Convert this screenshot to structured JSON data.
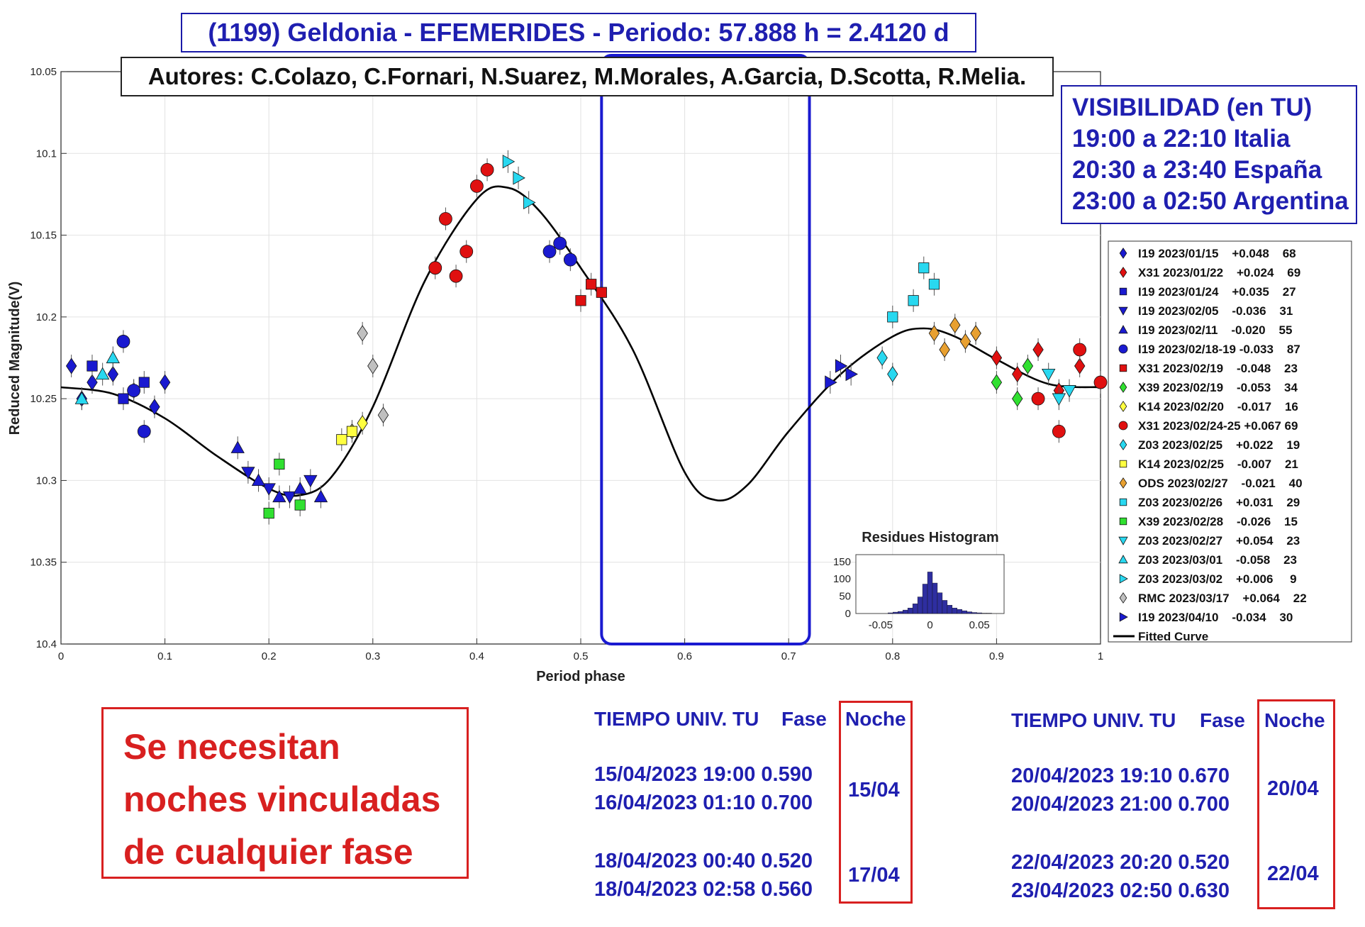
{
  "title": "(1199) Geldonia - EFEMERIDES - Periodo: 57.888 h = 2.4120 d",
  "authors": "Autores: C.Colazo, C.Fornari, N.Suarez, M.Morales, A.Garcia, D.Scotta, R.Melia.",
  "visibility": {
    "heading": "VISIBILIDAD (en TU)",
    "lines": [
      "19:00 a 22:10 Italia",
      "20:30 a 23:40 España",
      "23:00 a 02:50 Argentina"
    ]
  },
  "note_lines": [
    "Se necesitan",
    "noches vinculadas",
    "de cualquier fase"
  ],
  "tables": [
    {
      "headers": [
        "TIEMPO UNIV. TU",
        "Fase",
        "Noche"
      ],
      "groups": [
        {
          "rows": [
            "15/04/2023  19:00 0.590",
            "16/04/2023  01:10 0.700"
          ],
          "noche": "15/04"
        },
        {
          "rows": [
            "18/04/2023  00:40 0.520",
            "18/04/2023  02:58 0.560"
          ],
          "noche": "17/04"
        }
      ]
    },
    {
      "headers": [
        "TIEMPO UNIV. TU",
        "Fase",
        "Noche"
      ],
      "groups": [
        {
          "rows": [
            "20/04/2023  19:10 0.670",
            "20/04/2023  21:00 0.700"
          ],
          "noche": "20/04"
        },
        {
          "rows": [
            "22/04/2023  20:20 0.520",
            "23/04/2023  02:50 0.630"
          ],
          "noche": "22/04"
        }
      ]
    }
  ],
  "colors": {
    "blue": "#1a1ad0",
    "red": "#e01010",
    "cyan": "#28d8f0",
    "green": "#30e030",
    "yellow": "#ffff40",
    "orange": "#e8a030",
    "gray": "#c0c0c0",
    "curve": "#000000",
    "highlight": "#1a1ad0"
  },
  "chart_data": {
    "type": "scatter",
    "xlabel": "Period phase",
    "ylabel": "Reduced Magnitude(V)",
    "xlim": [
      0,
      1
    ],
    "ylim": [
      10.4,
      10.05
    ],
    "y_reversed": true,
    "xticks": [
      "0",
      "0.1",
      "0.2",
      "0.3",
      "0.4",
      "0.5",
      "0.6",
      "0.7",
      "0.8",
      "0.9",
      "1"
    ],
    "yticks": [
      "10.05",
      "10.1",
      "10.15",
      "10.2",
      "10.25",
      "10.3",
      "10.35",
      "10.4"
    ],
    "grid": true,
    "legend_position": "right",
    "highlight_region": {
      "x": [
        0.52,
        0.72
      ],
      "y": [
        10.04,
        10.4
      ]
    },
    "fitted_curve": {
      "name": "Fitted Curve",
      "points": [
        [
          0.0,
          10.243
        ],
        [
          0.05,
          10.247
        ],
        [
          0.1,
          10.262
        ],
        [
          0.15,
          10.285
        ],
        [
          0.2,
          10.305
        ],
        [
          0.23,
          10.309
        ],
        [
          0.26,
          10.298
        ],
        [
          0.3,
          10.255
        ],
        [
          0.35,
          10.178
        ],
        [
          0.4,
          10.128
        ],
        [
          0.43,
          10.121
        ],
        [
          0.46,
          10.135
        ],
        [
          0.5,
          10.17
        ],
        [
          0.55,
          10.22
        ],
        [
          0.6,
          10.295
        ],
        [
          0.63,
          10.312
        ],
        [
          0.66,
          10.303
        ],
        [
          0.7,
          10.27
        ],
        [
          0.75,
          10.235
        ],
        [
          0.8,
          10.212
        ],
        [
          0.83,
          10.207
        ],
        [
          0.86,
          10.212
        ],
        [
          0.9,
          10.226
        ],
        [
          0.95,
          10.241
        ],
        [
          1.0,
          10.243
        ]
      ]
    },
    "series": [
      {
        "name": "I19 2023/01/15    +0.048    68",
        "marker": "diamond",
        "color": "#1a1ad0",
        "points": [
          [
            0.01,
            10.23
          ],
          [
            0.02,
            10.25
          ],
          [
            0.03,
            10.24
          ],
          [
            0.05,
            10.235
          ],
          [
            0.07,
            10.245
          ],
          [
            0.09,
            10.255
          ],
          [
            0.1,
            10.24
          ]
        ]
      },
      {
        "name": "X31 2023/01/22    +0.024    69",
        "marker": "diamond",
        "color": "#e01010",
        "points": [
          [
            0.9,
            10.225
          ],
          [
            0.92,
            10.235
          ],
          [
            0.94,
            10.22
          ],
          [
            0.96,
            10.245
          ],
          [
            0.98,
            10.23
          ]
        ]
      },
      {
        "name": "I19 2023/01/24    +0.035    27",
        "marker": "square",
        "color": "#1a1ad0",
        "points": [
          [
            0.03,
            10.23
          ],
          [
            0.06,
            10.25
          ],
          [
            0.08,
            10.24
          ]
        ]
      },
      {
        "name": "I19 2023/02/05    -0.036    31",
        "marker": "triangle-down",
        "color": "#1a1ad0",
        "points": [
          [
            0.18,
            10.295
          ],
          [
            0.2,
            10.305
          ],
          [
            0.22,
            10.31
          ],
          [
            0.24,
            10.3
          ]
        ]
      },
      {
        "name": "I19 2023/02/11    -0.020    55",
        "marker": "triangle-up",
        "color": "#1a1ad0",
        "points": [
          [
            0.17,
            10.28
          ],
          [
            0.19,
            10.3
          ],
          [
            0.21,
            10.31
          ],
          [
            0.23,
            10.305
          ],
          [
            0.25,
            10.31
          ]
        ]
      },
      {
        "name": "I19 2023/02/18-19 -0.033    87",
        "marker": "circle",
        "color": "#1a1ad0",
        "points": [
          [
            0.06,
            10.215
          ],
          [
            0.07,
            10.245
          ],
          [
            0.08,
            10.27
          ],
          [
            0.47,
            10.16
          ],
          [
            0.48,
            10.155
          ],
          [
            0.49,
            10.165
          ]
        ]
      },
      {
        "name": "X31 2023/02/19    -0.048    23",
        "marker": "square",
        "color": "#e01010",
        "points": [
          [
            0.5,
            10.19
          ],
          [
            0.51,
            10.18
          ],
          [
            0.52,
            10.185
          ]
        ]
      },
      {
        "name": "X39 2023/02/19    -0.053    34",
        "marker": "diamond",
        "color": "#30e030",
        "points": [
          [
            0.88,
            10.21
          ],
          [
            0.9,
            10.24
          ],
          [
            0.92,
            10.25
          ],
          [
            0.93,
            10.23
          ]
        ]
      },
      {
        "name": "K14 2023/02/20    -0.017    16",
        "marker": "diamond",
        "color": "#ffff40",
        "points": [
          [
            0.28,
            10.27
          ],
          [
            0.29,
            10.265
          ]
        ]
      },
      {
        "name": "X31 2023/02/24-25 +0.067 69",
        "marker": "circle",
        "color": "#e01010",
        "points": [
          [
            0.36,
            10.17
          ],
          [
            0.37,
            10.14
          ],
          [
            0.38,
            10.175
          ],
          [
            0.39,
            10.16
          ],
          [
            0.4,
            10.12
          ],
          [
            0.41,
            10.11
          ],
          [
            0.94,
            10.25
          ],
          [
            0.96,
            10.27
          ],
          [
            0.98,
            10.22
          ],
          [
            1.0,
            10.24
          ]
        ]
      },
      {
        "name": "Z03 2023/02/25    +0.022    19",
        "marker": "diamond",
        "color": "#28d8f0",
        "points": [
          [
            0.79,
            10.225
          ],
          [
            0.8,
            10.235
          ]
        ]
      },
      {
        "name": "K14 2023/02/25    -0.007    21",
        "marker": "square",
        "color": "#ffff40",
        "points": [
          [
            0.27,
            10.275
          ],
          [
            0.28,
            10.27
          ]
        ]
      },
      {
        "name": "ODS 2023/02/27    -0.021    40",
        "marker": "diamond",
        "color": "#e8a030",
        "points": [
          [
            0.84,
            10.21
          ],
          [
            0.85,
            10.22
          ],
          [
            0.86,
            10.205
          ],
          [
            0.87,
            10.215
          ],
          [
            0.88,
            10.21
          ]
        ]
      },
      {
        "name": "Z03 2023/02/26    +0.031    29",
        "marker": "square",
        "color": "#28d8f0",
        "points": [
          [
            0.8,
            10.2
          ],
          [
            0.82,
            10.19
          ],
          [
            0.83,
            10.17
          ],
          [
            0.84,
            10.18
          ]
        ]
      },
      {
        "name": "X39 2023/02/28    -0.026    15",
        "marker": "square",
        "color": "#30e030",
        "points": [
          [
            0.2,
            10.32
          ],
          [
            0.21,
            10.29
          ],
          [
            0.23,
            10.315
          ]
        ]
      },
      {
        "name": "Z03 2023/02/27    +0.054    23",
        "marker": "triangle-down",
        "color": "#28d8f0",
        "points": [
          [
            0.95,
            10.235
          ],
          [
            0.96,
            10.25
          ],
          [
            0.97,
            10.245
          ]
        ]
      },
      {
        "name": "Z03 2023/03/01    -0.058    23",
        "marker": "triangle-up",
        "color": "#28d8f0",
        "points": [
          [
            0.02,
            10.25
          ],
          [
            0.04,
            10.235
          ],
          [
            0.05,
            10.225
          ]
        ]
      },
      {
        "name": "Z03 2023/03/02    +0.006     9",
        "marker": "triangle-right",
        "color": "#28d8f0",
        "points": [
          [
            0.43,
            10.105
          ],
          [
            0.44,
            10.115
          ],
          [
            0.45,
            10.13
          ]
        ]
      },
      {
        "name": "RMC 2023/03/17    +0.064    22",
        "marker": "diamond",
        "color": "#c0c0c0",
        "points": [
          [
            0.29,
            10.21
          ],
          [
            0.3,
            10.23
          ],
          [
            0.31,
            10.26
          ]
        ]
      },
      {
        "name": "I19 2023/04/10    -0.034    30",
        "marker": "triangle-right",
        "color": "#1a1ad0",
        "points": [
          [
            0.74,
            10.24
          ],
          [
            0.75,
            10.23
          ],
          [
            0.76,
            10.235
          ]
        ]
      }
    ],
    "inset_histogram": {
      "title": "Residues Histogram",
      "xticks": [
        "-0.05",
        "0",
        "0.05"
      ],
      "yticks": [
        "0",
        "50",
        "100",
        "150"
      ],
      "xlim": [
        -0.075,
        0.075
      ],
      "ylim": [
        0,
        170
      ],
      "bin_centers": [
        -0.04,
        -0.035,
        -0.03,
        -0.025,
        -0.02,
        -0.015,
        -0.01,
        -0.005,
        0.0,
        0.005,
        0.01,
        0.015,
        0.02,
        0.025,
        0.03,
        0.035,
        0.04,
        0.045,
        0.05,
        0.055,
        0.06
      ],
      "counts": [
        2,
        4,
        6,
        10,
        16,
        28,
        48,
        85,
        120,
        88,
        60,
        38,
        24,
        16,
        12,
        8,
        5,
        3,
        2,
        1,
        1
      ]
    }
  }
}
